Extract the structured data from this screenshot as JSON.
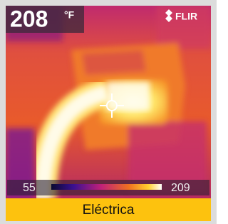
{
  "header": {
    "temperature": 208,
    "unit": "°F",
    "brand": "FLIR"
  },
  "scale": {
    "min": 55,
    "max": 209
  },
  "caption": "Eléctrica"
}
